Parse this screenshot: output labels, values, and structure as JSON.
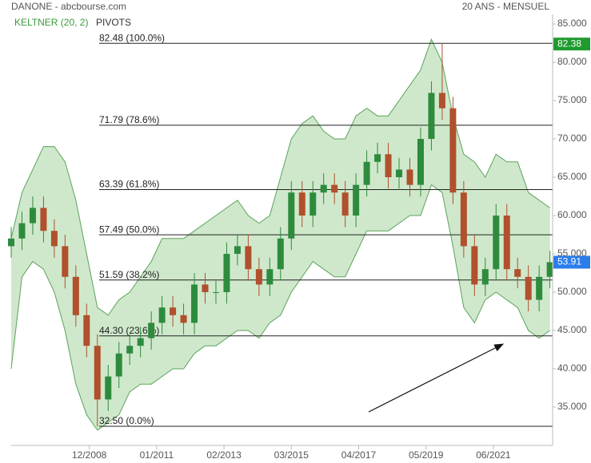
{
  "chart_data": {
    "type": "candlestick",
    "title": "DANONE - abcbourse.com",
    "subtitle": "20 ANS - MENSUEL",
    "indicators": [
      "KELTNER (20, 2)",
      "PIVOTS"
    ],
    "x": [
      "07/2006",
      "11/2006",
      "03/2007",
      "07/2007",
      "11/2007",
      "03/2008",
      "07/2008",
      "11/2008",
      "03/2009",
      "07/2009",
      "11/2009",
      "03/2010",
      "07/2010",
      "11/2010",
      "03/2011",
      "07/2011",
      "11/2011",
      "03/2012",
      "07/2012",
      "11/2012",
      "03/2013",
      "07/2013",
      "11/2013",
      "03/2014",
      "07/2014",
      "11/2014",
      "03/2015",
      "07/2015",
      "11/2015",
      "03/2016",
      "07/2016",
      "11/2016",
      "03/2017",
      "07/2017",
      "11/2017",
      "03/2018",
      "07/2018",
      "11/2018",
      "03/2019",
      "07/2019",
      "11/2019",
      "03/2020",
      "07/2020",
      "11/2020",
      "03/2021",
      "07/2021",
      "11/2021",
      "03/2022",
      "07/2022",
      "11/2022",
      "03/2023"
    ],
    "open": [
      56,
      57,
      59,
      61,
      58,
      56,
      52,
      47,
      43,
      36,
      39,
      42,
      43,
      44,
      46,
      48,
      47,
      46,
      51,
      50,
      50,
      55,
      56,
      53,
      51,
      53,
      57,
      63,
      60,
      63,
      64,
      63,
      60,
      64,
      67,
      68,
      65,
      66,
      64,
      70,
      76,
      74,
      63,
      56,
      51,
      53,
      60,
      53,
      52,
      49,
      52
    ],
    "high": [
      58.5,
      60.5,
      62.5,
      62.5,
      59.5,
      57.5,
      53.5,
      48.5,
      44.5,
      40.5,
      43.5,
      44.5,
      45.5,
      47.5,
      49.5,
      49.5,
      48.5,
      52.5,
      52.5,
      51.5,
      56.5,
      57.5,
      57.5,
      54.5,
      54.5,
      58.5,
      64.5,
      64.5,
      64.5,
      65.5,
      65.5,
      64.5,
      65.5,
      68.5,
      69.5,
      69.5,
      67.5,
      67.5,
      71.5,
      77.5,
      82.4,
      75.5,
      64.5,
      57.5,
      54.5,
      61.5,
      61.5,
      54.5,
      53.5,
      53.5,
      55.4
    ],
    "low": [
      54.5,
      55.5,
      57.5,
      56.5,
      54.5,
      50.5,
      45.5,
      41.5,
      32.5,
      34.5,
      37.5,
      40.5,
      41.5,
      42.5,
      44.5,
      45.5,
      44.5,
      44.5,
      48.5,
      48.5,
      48.5,
      53.5,
      51.5,
      49.5,
      49.5,
      51.5,
      55.5,
      58.5,
      58.5,
      61.5,
      61.5,
      58.5,
      58.5,
      62.5,
      65.5,
      63.5,
      63.5,
      62.5,
      62.5,
      68.5,
      72.5,
      61.5,
      54.5,
      49.5,
      49.5,
      51.5,
      51.5,
      50.5,
      47.5,
      47.5,
      50.5
    ],
    "close": [
      57,
      59,
      61,
      58,
      56,
      52,
      47,
      43,
      36,
      39,
      42,
      43,
      44,
      46,
      48,
      47,
      46,
      51,
      50,
      50,
      55,
      56,
      53,
      51,
      53,
      57,
      63,
      60,
      63,
      64,
      63,
      60,
      64,
      67,
      68,
      65,
      66,
      64,
      70,
      76,
      74,
      63,
      56,
      51,
      53,
      60,
      53,
      52,
      49,
      52,
      53.91
    ],
    "up_color": "#2e8b3e",
    "down_color": "#b0502c",
    "keltner": {
      "upper": [
        57,
        63,
        66,
        69,
        69,
        67,
        62,
        55,
        48,
        47,
        49,
        50,
        52,
        54,
        57,
        57,
        57,
        58,
        59,
        60,
        61,
        62,
        60,
        59,
        60,
        65,
        70,
        72,
        73,
        71,
        70,
        70,
        73,
        74,
        73,
        73,
        75,
        77,
        79,
        83,
        80,
        73,
        68,
        67,
        65,
        68,
        67,
        67,
        63,
        62,
        61
      ],
      "lower": [
        40,
        52,
        54,
        53,
        50,
        45,
        38,
        34,
        32,
        33,
        34,
        37,
        38,
        38,
        39,
        40,
        40,
        42,
        43,
        43,
        44,
        45,
        45,
        44,
        46,
        47,
        50,
        52,
        54,
        53,
        52,
        52,
        55,
        58,
        58,
        58,
        59,
        60,
        60,
        64,
        63,
        56,
        48,
        46,
        49,
        50,
        49,
        48,
        45,
        44,
        45
      ],
      "color": "#5aa35a",
      "fill": "#cfe8cb"
    },
    "pivots": [
      {
        "value": 82.48,
        "label": "82.48 (100.0%)"
      },
      {
        "value": 71.79,
        "label": "71.79 (78.6%)"
      },
      {
        "value": 63.39,
        "label": "63.39 (61.8%)"
      },
      {
        "value": 57.49,
        "label": "57.49 (50.0%)"
      },
      {
        "value": 51.59,
        "label": "51.59 (38.2%)"
      },
      {
        "value": 44.3,
        "label": "44.30 (23.6%)"
      },
      {
        "value": 32.5,
        "label": "32.50 (0.0%)"
      }
    ],
    "markers": [
      {
        "value": 82.38,
        "color": "#1f9a2e"
      },
      {
        "value": 53.91,
        "color": "#2b7de9"
      }
    ],
    "xlim": [
      "07/2006",
      "04/2023"
    ],
    "xticks": [
      "12/2008",
      "01/2011",
      "02/2013",
      "03/2015",
      "04/2017",
      "05/2019",
      "06/2021"
    ],
    "ylim": [
      30,
      86.25
    ],
    "yticks": [
      {
        "value": 35,
        "label": "35.000"
      },
      {
        "value": 40,
        "label": "40.000"
      },
      {
        "value": 45,
        "label": "45.000"
      },
      {
        "value": 50,
        "label": "50.000"
      },
      {
        "value": 55,
        "label": "55.000"
      },
      {
        "value": 60,
        "label": "60.000"
      },
      {
        "value": 65,
        "label": "65.000"
      },
      {
        "value": 70,
        "label": "70.000"
      },
      {
        "value": 75,
        "label": "75.000"
      },
      {
        "value": 80,
        "label": "80.000"
      },
      {
        "value": 85,
        "label": "85.000"
      }
    ]
  }
}
